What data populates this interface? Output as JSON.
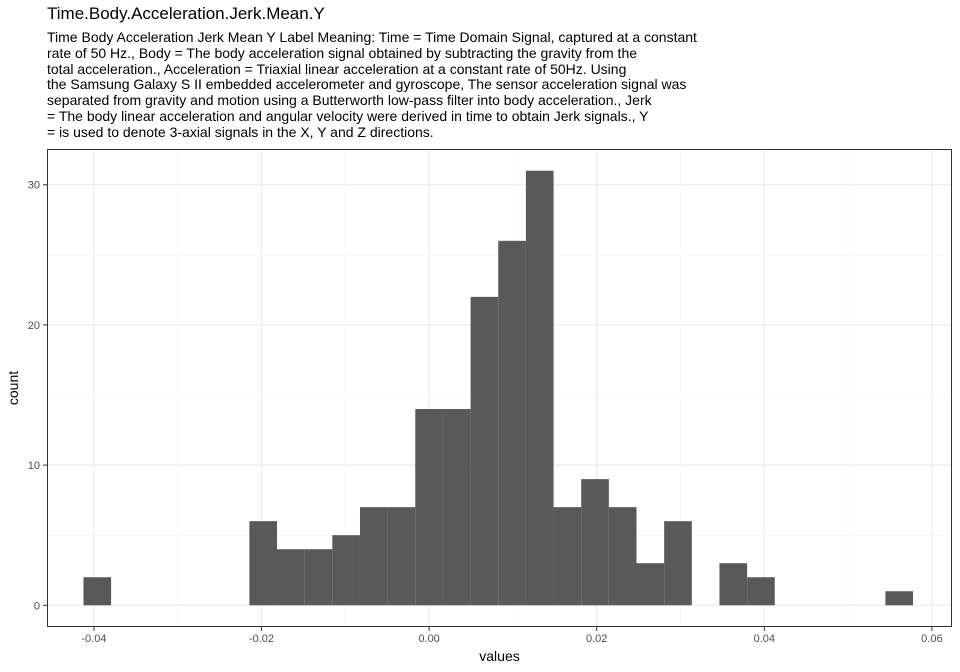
{
  "chart_data": {
    "type": "bar",
    "title": "Time.Body.Acceleration.Jerk.Mean.Y",
    "subtitle_lines": [
      "Time Body Acceleration Jerk Mean Y Label Meaning: Time = Time Domain Signal, captured at a constant",
      "rate of 50 Hz., Body = The body acceleration signal obtained by subtracting the gravity from the",
      "total acceleration., Acceleration = Triaxial linear acceleration at a constant rate of 50Hz. Using",
      "the Samsung Galaxy S II embedded accelerometer and gyroscope, The sensor acceleration signal was",
      "separated from gravity and motion using a Butterworth low-pass filter into body acceleration., Jerk",
      "= The body linear acceleration and angular velocity were derived in time to obtain Jerk signals., Y",
      "= is used to denote 3-axial signals in the X, Y and Z directions."
    ],
    "xlabel": "values",
    "ylabel": "count",
    "xlim": [
      -0.0456,
      0.0624
    ],
    "ylim": [
      -1.55,
      32.55
    ],
    "x_ticks": [
      -0.04,
      -0.02,
      0.0,
      0.02,
      0.04,
      0.06
    ],
    "x_tick_labels": [
      "-0.04",
      "-0.02",
      "0.00",
      "0.02",
      "0.04",
      "0.06"
    ],
    "y_ticks": [
      0,
      10,
      20,
      30
    ],
    "y_tick_labels": [
      "0",
      "10",
      "20",
      "30"
    ],
    "bin_width": 0.0033,
    "bins": [
      {
        "x": -0.0396,
        "count": 2
      },
      {
        "x": -0.0363,
        "count": 0
      },
      {
        "x": -0.033,
        "count": 0
      },
      {
        "x": -0.0297,
        "count": 0
      },
      {
        "x": -0.0264,
        "count": 0
      },
      {
        "x": -0.0231,
        "count": 0
      },
      {
        "x": -0.0198,
        "count": 6
      },
      {
        "x": -0.0165,
        "count": 4
      },
      {
        "x": -0.0132,
        "count": 4
      },
      {
        "x": -0.0099,
        "count": 5
      },
      {
        "x": -0.0066,
        "count": 7
      },
      {
        "x": -0.0033,
        "count": 7
      },
      {
        "x": 0.0,
        "count": 14
      },
      {
        "x": 0.0033,
        "count": 14
      },
      {
        "x": 0.0066,
        "count": 22
      },
      {
        "x": 0.0099,
        "count": 26
      },
      {
        "x": 0.0132,
        "count": 31
      },
      {
        "x": 0.0165,
        "count": 7
      },
      {
        "x": 0.0198,
        "count": 9
      },
      {
        "x": 0.0231,
        "count": 7
      },
      {
        "x": 0.0264,
        "count": 3
      },
      {
        "x": 0.0297,
        "count": 6
      },
      {
        "x": 0.033,
        "count": 0
      },
      {
        "x": 0.0363,
        "count": 3
      },
      {
        "x": 0.0396,
        "count": 2
      },
      {
        "x": 0.0429,
        "count": 0
      },
      {
        "x": 0.0462,
        "count": 0
      },
      {
        "x": 0.0495,
        "count": 0
      },
      {
        "x": 0.0528,
        "count": 0
      },
      {
        "x": 0.0561,
        "count": 1
      }
    ],
    "grid": true,
    "colors": {
      "bar": "#595959",
      "panel_border": "#333333",
      "grid_major": "#ebebeb",
      "grid_minor": "#f4f4f4",
      "tick_label": "#4d4d4d"
    }
  }
}
